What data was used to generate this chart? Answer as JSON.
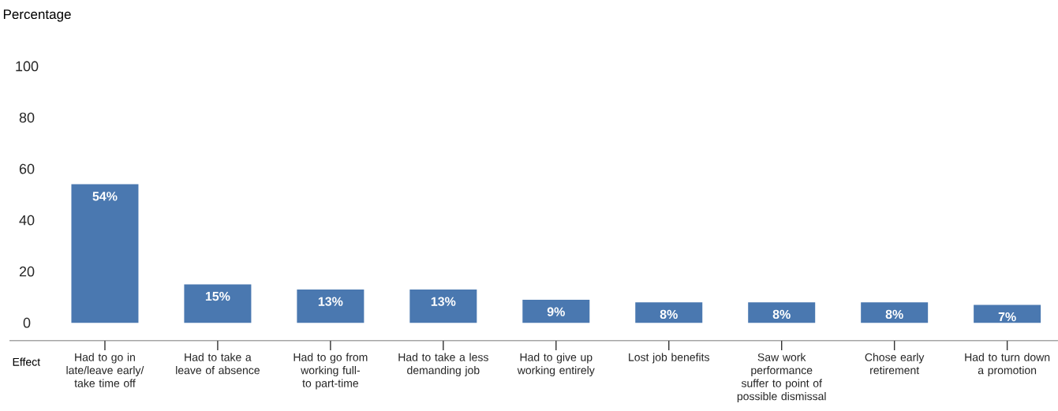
{
  "chart_data": {
    "type": "bar",
    "xlabel": "Effect",
    "ylabel": "Percentage",
    "categories": [
      "Had to go in late/leave early/ take time off",
      "Had to take a leave of absence",
      "Had to go from working full- to part-time",
      "Had to take a less demanding job",
      "Had to give up working entirely",
      "Lost job benefits",
      "Saw work performance suffer to point of possible dismissal",
      "Chose early retirement",
      "Had to turn down a promotion"
    ],
    "values": [
      54,
      15,
      13,
      13,
      9,
      8,
      8,
      8,
      7
    ],
    "value_labels": [
      "54%",
      "15%",
      "13%",
      "13%",
      "9%",
      "8%",
      "8%",
      "8%",
      "7%"
    ],
    "color": "#4a78b0",
    "ylim": [
      -7,
      100
    ],
    "yticks": [
      0,
      20,
      40,
      60,
      80,
      100
    ]
  }
}
